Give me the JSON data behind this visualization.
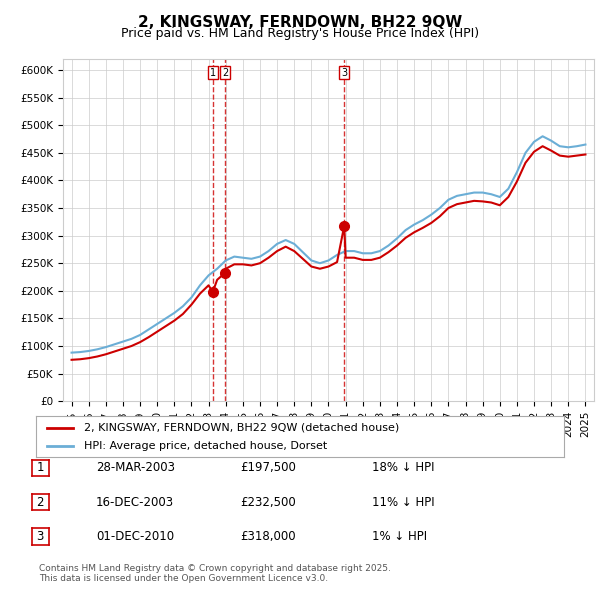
{
  "title": "2, KINGSWAY, FERNDOWN, BH22 9QW",
  "subtitle": "Price paid vs. HM Land Registry's House Price Index (HPI)",
  "legend_line1": "2, KINGSWAY, FERNDOWN, BH22 9QW (detached house)",
  "legend_line2": "HPI: Average price, detached house, Dorset",
  "footnote": "Contains HM Land Registry data © Crown copyright and database right 2025.\nThis data is licensed under the Open Government Licence v3.0.",
  "transactions": [
    {
      "num": 1,
      "date": "28-MAR-2003",
      "price": "£197,500",
      "hpi": "18% ↓ HPI",
      "x_year": 2003.24
    },
    {
      "num": 2,
      "date": "16-DEC-2003",
      "price": "£232,500",
      "hpi": "11% ↓ HPI",
      "x_year": 2003.96
    },
    {
      "num": 3,
      "date": "01-DEC-2010",
      "price": "£318,000",
      "hpi": "1% ↓ HPI",
      "x_year": 2010.92
    }
  ],
  "transaction_prices": [
    197500,
    232500,
    318000
  ],
  "hpi_color": "#6baed6",
  "price_color": "#cc0000",
  "dashed_color": "#cc0000",
  "ylim": [
    0,
    620000
  ],
  "yticks": [
    0,
    50000,
    100000,
    150000,
    200000,
    250000,
    300000,
    350000,
    400000,
    450000,
    500000,
    550000,
    600000
  ],
  "ytick_labels": [
    "£0",
    "£50K",
    "£100K",
    "£150K",
    "£200K",
    "£250K",
    "£300K",
    "£350K",
    "£400K",
    "£450K",
    "£500K",
    "£550K",
    "£600K"
  ],
  "hpi_data": {
    "years": [
      1995.0,
      1995.5,
      1996.0,
      1996.5,
      1997.0,
      1997.5,
      1998.0,
      1998.5,
      1999.0,
      1999.5,
      2000.0,
      2000.5,
      2001.0,
      2001.5,
      2002.0,
      2002.5,
      2003.0,
      2003.5,
      2004.0,
      2004.5,
      2005.0,
      2005.5,
      2006.0,
      2006.5,
      2007.0,
      2007.5,
      2008.0,
      2008.5,
      2009.0,
      2009.5,
      2010.0,
      2010.5,
      2011.0,
      2011.5,
      2012.0,
      2012.5,
      2013.0,
      2013.5,
      2014.0,
      2014.5,
      2015.0,
      2015.5,
      2016.0,
      2016.5,
      2017.0,
      2017.5,
      2018.0,
      2018.5,
      2019.0,
      2019.5,
      2020.0,
      2020.5,
      2021.0,
      2021.5,
      2022.0,
      2022.5,
      2023.0,
      2023.5,
      2024.0,
      2024.5,
      2025.0
    ],
    "values": [
      88000,
      89000,
      91000,
      94000,
      98000,
      103000,
      108000,
      113000,
      120000,
      130000,
      140000,
      150000,
      160000,
      172000,
      188000,
      210000,
      228000,
      240000,
      255000,
      262000,
      260000,
      258000,
      262000,
      272000,
      285000,
      292000,
      285000,
      270000,
      255000,
      250000,
      255000,
      265000,
      272000,
      272000,
      268000,
      268000,
      272000,
      282000,
      295000,
      310000,
      320000,
      328000,
      338000,
      350000,
      365000,
      372000,
      375000,
      378000,
      378000,
      375000,
      370000,
      385000,
      415000,
      450000,
      470000,
      480000,
      472000,
      462000,
      460000,
      462000,
      465000
    ]
  },
  "price_data": {
    "years": [
      1995.0,
      1995.5,
      1996.0,
      1996.5,
      1997.0,
      1997.5,
      1998.0,
      1998.5,
      1999.0,
      1999.5,
      2000.0,
      2000.5,
      2001.0,
      2001.5,
      2002.0,
      2002.5,
      2003.0,
      2003.24,
      2003.5,
      2003.96,
      2004.0,
      2004.5,
      2005.0,
      2005.5,
      2006.0,
      2006.5,
      2007.0,
      2007.5,
      2008.0,
      2008.5,
      2009.0,
      2009.5,
      2010.0,
      2010.5,
      2010.92,
      2011.0,
      2011.5,
      2012.0,
      2012.5,
      2013.0,
      2013.5,
      2014.0,
      2014.5,
      2015.0,
      2015.5,
      2016.0,
      2016.5,
      2017.0,
      2017.5,
      2018.0,
      2018.5,
      2019.0,
      2019.5,
      2020.0,
      2020.5,
      2021.0,
      2021.5,
      2022.0,
      2022.5,
      2023.0,
      2023.5,
      2024.0,
      2024.5,
      2025.0
    ],
    "values": [
      75000,
      76000,
      78000,
      81000,
      85000,
      90000,
      95000,
      100000,
      107000,
      116000,
      126000,
      136000,
      146000,
      158000,
      175000,
      195000,
      210000,
      197500,
      220000,
      232500,
      240000,
      248000,
      248000,
      246000,
      250000,
      260000,
      272000,
      280000,
      272000,
      258000,
      244000,
      240000,
      244000,
      252000,
      318000,
      260000,
      260000,
      256000,
      256000,
      260000,
      270000,
      282000,
      296000,
      306000,
      314000,
      323000,
      335000,
      350000,
      357000,
      360000,
      363000,
      362000,
      360000,
      355000,
      370000,
      398000,
      432000,
      452000,
      462000,
      454000,
      445000,
      443000,
      445000,
      447000
    ]
  },
  "xlim": [
    1994.5,
    2025.5
  ],
  "xticks": [
    1995,
    1996,
    1997,
    1998,
    1999,
    2000,
    2001,
    2002,
    2003,
    2004,
    2005,
    2006,
    2007,
    2008,
    2009,
    2010,
    2011,
    2012,
    2013,
    2014,
    2015,
    2016,
    2017,
    2018,
    2019,
    2020,
    2021,
    2022,
    2023,
    2024,
    2025
  ],
  "bg_color": "#ffffff",
  "grid_color": "#cccccc"
}
